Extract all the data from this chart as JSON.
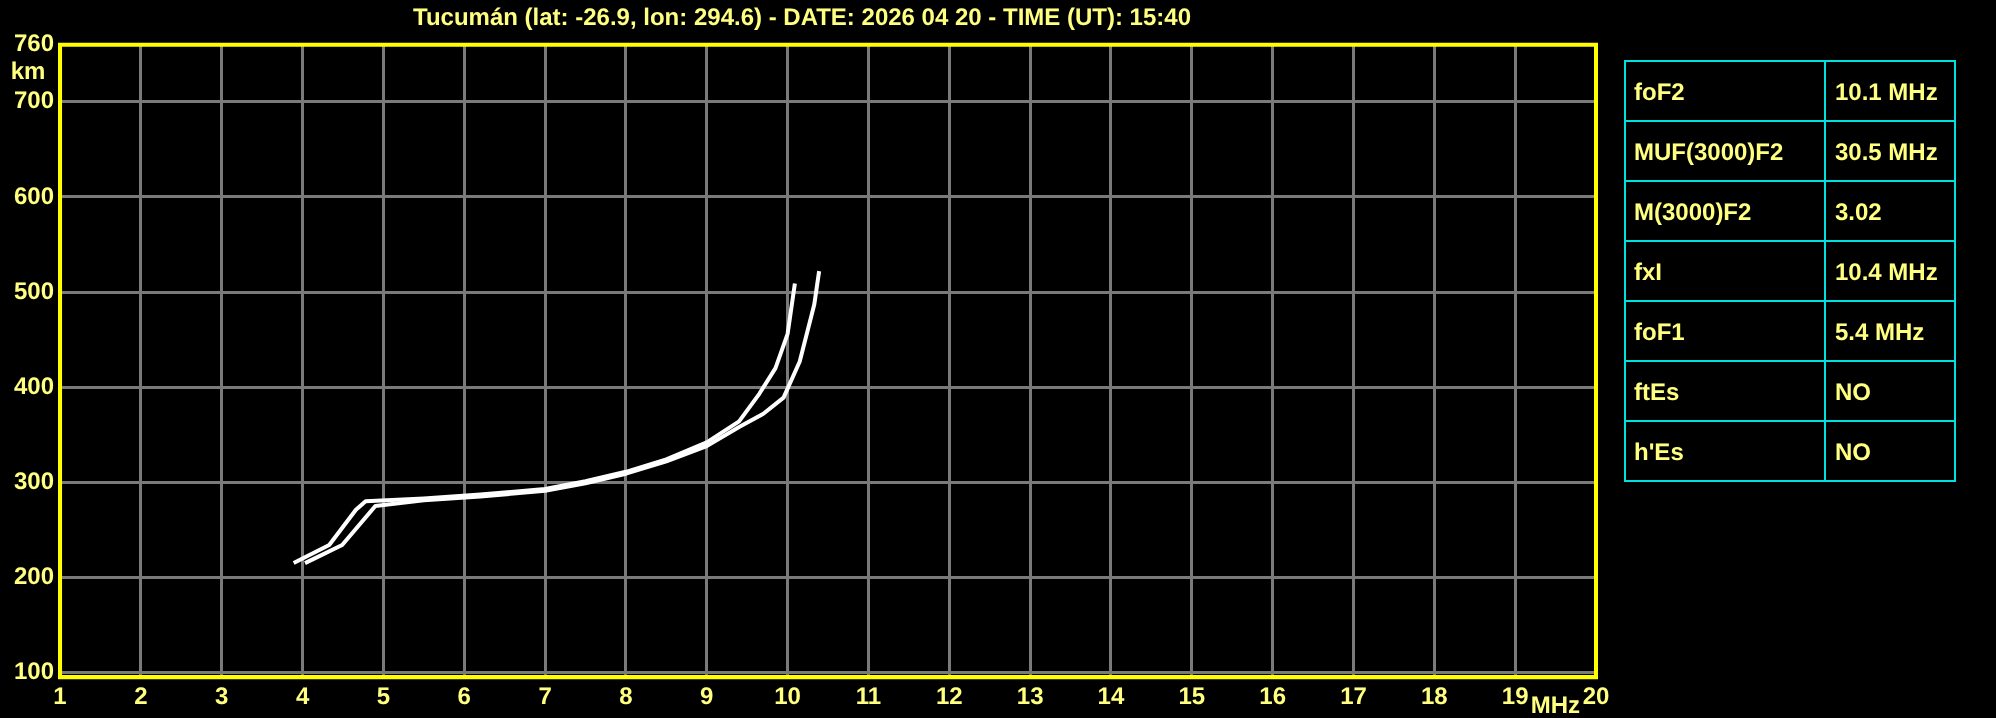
{
  "chart_data": {
    "type": "line",
    "title": "Tucumán (lat: -26.9, lon: 294.6) - DATE: 2026 04 20 - TIME (UT): 15:40",
    "xlabel": "MHz",
    "ylabel": "km",
    "xlim": [
      1,
      20
    ],
    "xticks": [
      1,
      2,
      3,
      4,
      5,
      6,
      7,
      8,
      9,
      10,
      11,
      12,
      13,
      14,
      15,
      16,
      17,
      18,
      19,
      20
    ],
    "ylim": [
      95,
      760
    ],
    "yticks": [
      100,
      200,
      300,
      400,
      500,
      600,
      700,
      760
    ],
    "grid": true,
    "marker": "none",
    "line_style": "solid",
    "series": [
      {
        "color": "#ffffff",
        "x": [
          3.89,
          4.33,
          4.66,
          4.78,
          5.5,
          6.2,
          7.0,
          7.5,
          8.0,
          8.5,
          9.0,
          9.4,
          9.65,
          9.85,
          10.0,
          10.09
        ],
        "values": [
          215,
          234,
          271,
          280,
          283,
          287,
          293,
          301,
          311,
          324,
          342,
          364,
          393,
          420,
          456,
          509
        ]
      },
      {
        "color": "#ffffff",
        "x": [
          4.03,
          4.49,
          4.9,
          5.5,
          6.2,
          7.0,
          7.5,
          8.0,
          8.5,
          9.0,
          9.4,
          9.7,
          9.95,
          10.15,
          10.33,
          10.39
        ],
        "values": [
          215,
          234,
          275,
          281,
          285,
          291,
          299,
          309,
          322,
          338,
          358,
          372,
          389,
          427,
          487,
          522
        ]
      }
    ],
    "annotations": [
      "foF2",
      "10.1 MHz",
      "MUF(3000)F2",
      "30.5 MHz",
      "M(3000)F2",
      "3.02",
      "fxI",
      "10.4 MHz",
      "foF1",
      "5.4 MHz",
      "ftEs",
      "NO",
      "h'Es",
      "NO"
    ]
  }
}
